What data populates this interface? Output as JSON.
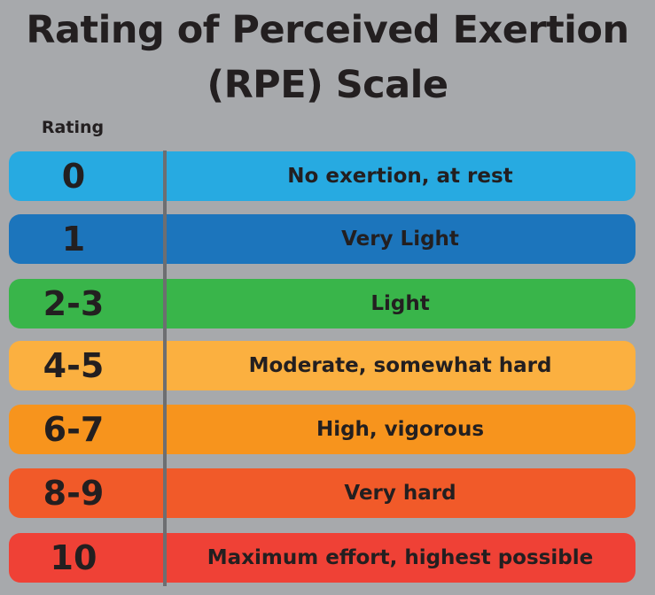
{
  "title_line1": "Rating of Perceived Exertion",
  "title_line2": "(RPE) Scale",
  "column_label": "Rating",
  "rows": [
    {
      "rating": "0",
      "description": "No exertion, at rest",
      "color": "#27aae1"
    },
    {
      "rating": "1",
      "description": "Very Light",
      "color": "#1c75bc"
    },
    {
      "rating": "2-3",
      "description": "Light",
      "color": "#39b54a"
    },
    {
      "rating": "4-5",
      "description": "Moderate, somewhat hard",
      "color": "#fbb040"
    },
    {
      "rating": "6-7",
      "description": "High, vigorous",
      "color": "#f7941d"
    },
    {
      "rating": "8-9",
      "description": "Very hard",
      "color": "#f15a29"
    },
    {
      "rating": "10",
      "description": "Maximum effort, highest possible",
      "color": "#ef4136"
    }
  ]
}
